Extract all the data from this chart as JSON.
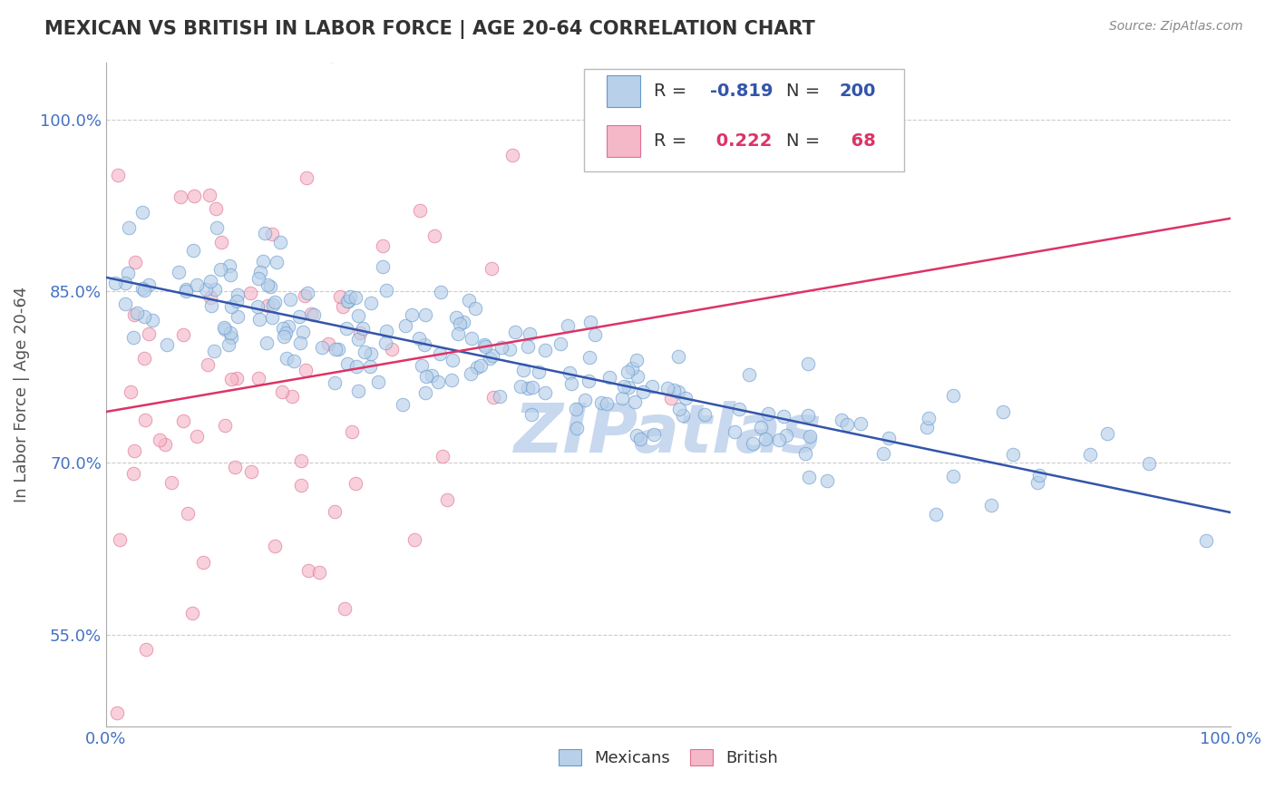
{
  "title": "MEXICAN VS BRITISH IN LABOR FORCE | AGE 20-64 CORRELATION CHART",
  "source": "Source: ZipAtlas.com",
  "ylabel": "In Labor Force | Age 20-64",
  "xlim": [
    0.0,
    1.0
  ],
  "ylim": [
    0.47,
    1.05
  ],
  "ytick_positions": [
    0.55,
    0.7,
    0.85,
    1.0
  ],
  "mexican_color": "#b8d0ea",
  "mexican_edge": "#6699cc",
  "british_color": "#f4b8c8",
  "british_edge": "#e07090",
  "trend_mexican_color": "#3355aa",
  "trend_british_color": "#dd3366",
  "R_mexican": -0.819,
  "N_mexican": 200,
  "R_british": 0.222,
  "N_british": 68,
  "watermark": "ZIPatlas",
  "watermark_color": "#c8d8ee",
  "background_color": "#ffffff",
  "grid_color": "#cccccc",
  "title_color": "#333333",
  "axis_color": "#4472c4",
  "ylabel_color": "#555555",
  "seed": 42
}
